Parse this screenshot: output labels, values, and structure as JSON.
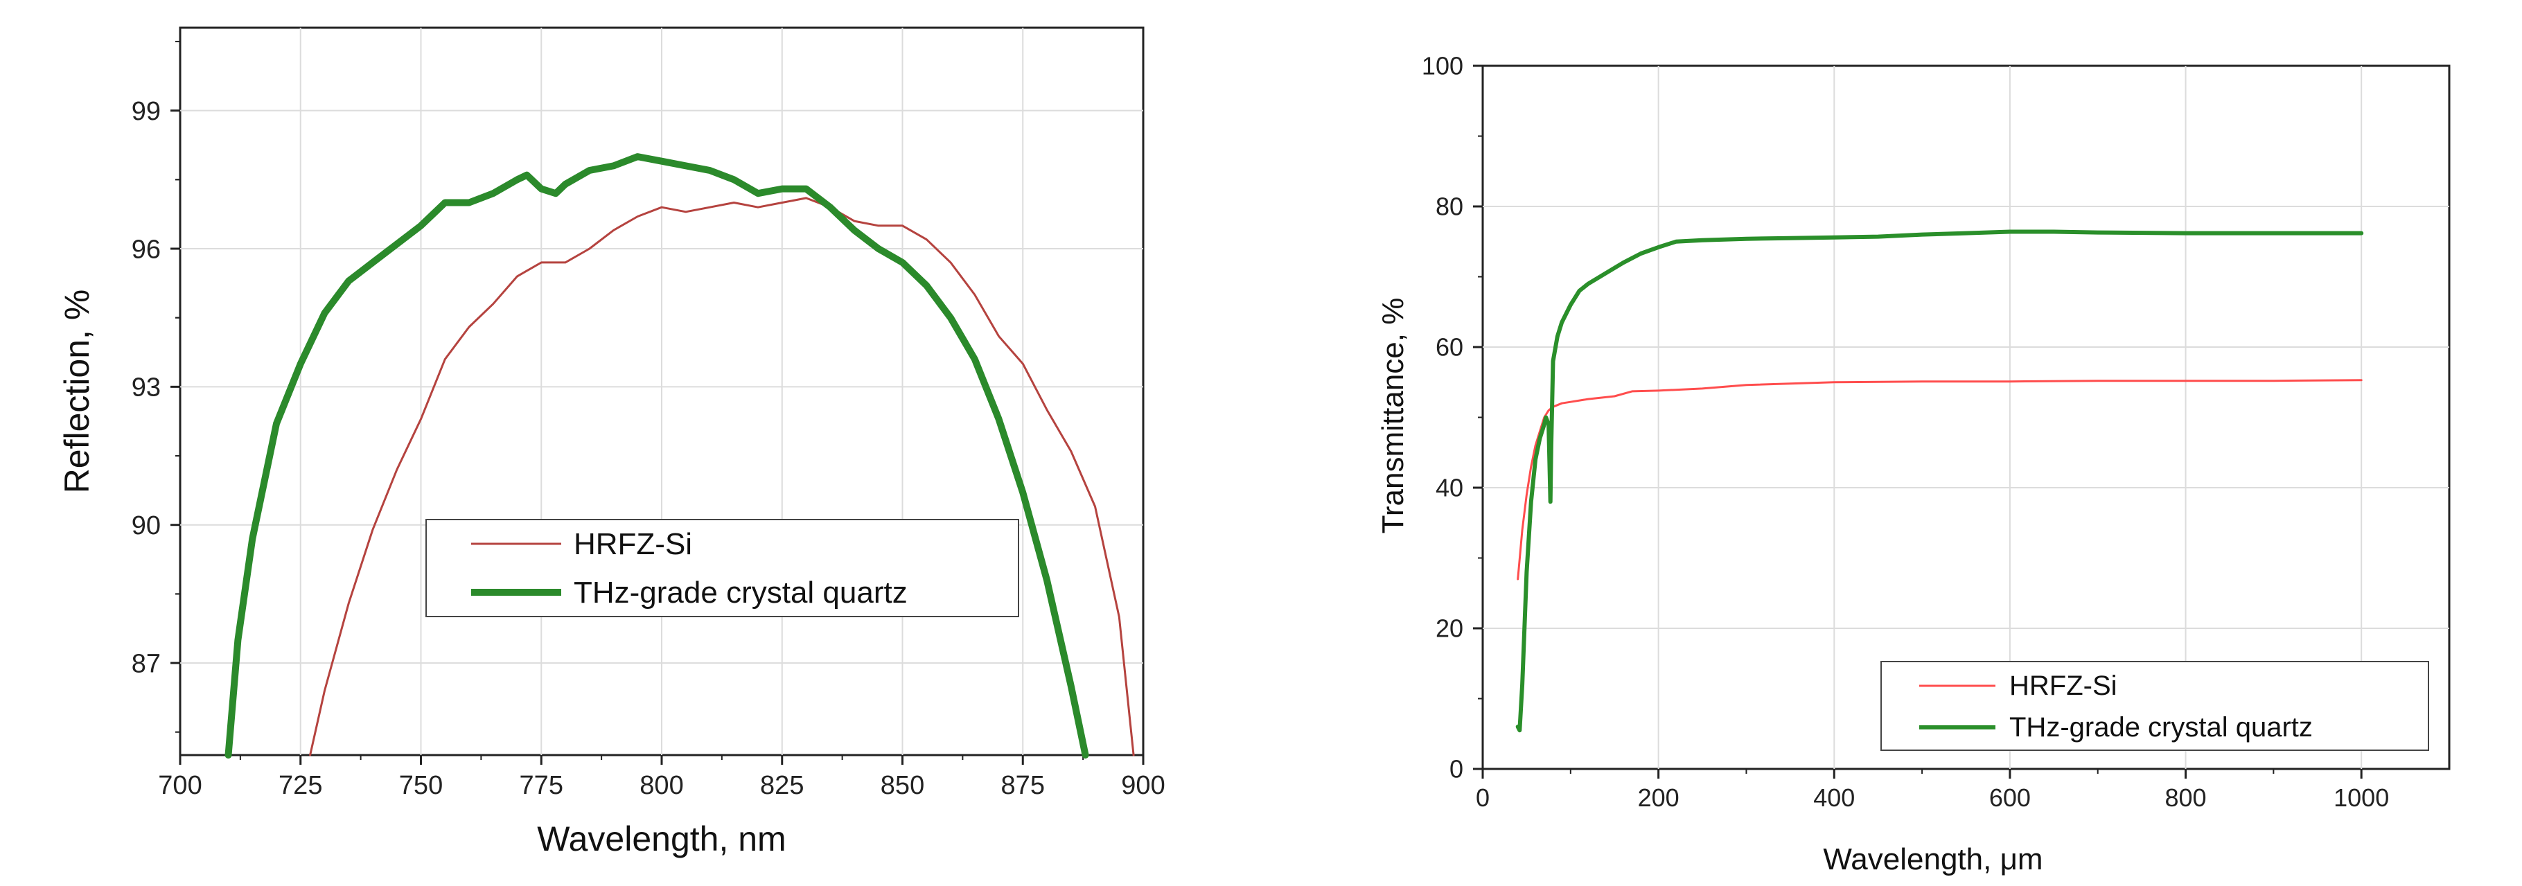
{
  "chart_data": [
    {
      "type": "line",
      "xlabel": "Wavelength, nm",
      "ylabel": "Reflection, %",
      "xlim": [
        700,
        900
      ],
      "ylim": [
        85,
        100.8
      ],
      "xticks": [
        700,
        725,
        750,
        775,
        800,
        825,
        850,
        875,
        900
      ],
      "yticks": [
        87,
        90,
        93,
        96,
        99
      ],
      "grid": true,
      "legend_position": "center-right",
      "series": [
        {
          "name": "HRFZ-Si",
          "color": "#b5433f",
          "x": [
            727,
            730,
            735,
            740,
            745,
            750,
            755,
            760,
            765,
            770,
            775,
            780,
            785,
            790,
            795,
            800,
            805,
            810,
            815,
            820,
            825,
            830,
            835,
            840,
            845,
            850,
            855,
            860,
            865,
            870,
            875,
            880,
            885,
            890,
            895,
            898
          ],
          "y": [
            85.0,
            86.4,
            88.3,
            89.9,
            91.2,
            92.3,
            93.6,
            94.3,
            94.8,
            95.4,
            95.7,
            95.7,
            96.0,
            96.4,
            96.7,
            96.9,
            96.8,
            96.9,
            97.0,
            96.9,
            97.0,
            97.1,
            96.9,
            96.6,
            96.5,
            96.5,
            96.2,
            95.7,
            95.0,
            94.1,
            93.5,
            92.5,
            91.6,
            90.4,
            88.0,
            85.0
          ],
          "line_width": 3
        },
        {
          "name": "THz-grade crystal quartz",
          "color": "#2b8a2b",
          "x": [
            710,
            712,
            715,
            718,
            720,
            725,
            730,
            735,
            740,
            745,
            750,
            755,
            760,
            765,
            770,
            772,
            775,
            778,
            780,
            785,
            790,
            795,
            800,
            805,
            810,
            815,
            820,
            825,
            830,
            835,
            840,
            845,
            850,
            855,
            860,
            865,
            870,
            875,
            880,
            885,
            888
          ],
          "y": [
            85.0,
            87.5,
            89.7,
            91.2,
            92.2,
            93.5,
            94.6,
            95.3,
            95.7,
            96.1,
            96.5,
            97.0,
            97.0,
            97.2,
            97.5,
            97.6,
            97.3,
            97.2,
            97.4,
            97.7,
            97.8,
            98.0,
            97.9,
            97.8,
            97.7,
            97.5,
            97.2,
            97.3,
            97.3,
            96.9,
            96.4,
            96.0,
            95.7,
            95.2,
            94.5,
            93.6,
            92.3,
            90.7,
            88.8,
            86.5,
            85.0
          ],
          "line_width": 10
        }
      ]
    },
    {
      "type": "line",
      "xlabel": "Wavelength, μm",
      "ylabel": "Transmittance, %",
      "xlim": [
        0,
        1100
      ],
      "ylim": [
        0,
        100
      ],
      "xticks": [
        0,
        200,
        400,
        600,
        800,
        1000
      ],
      "yticks": [
        0,
        20,
        40,
        60,
        80,
        100
      ],
      "grid": true,
      "legend_position": "bottom-right",
      "series": [
        {
          "name": "HRFZ-Si",
          "color": "#ff4d4d",
          "x": [
            40,
            45,
            50,
            55,
            60,
            65,
            70,
            75,
            80,
            90,
            100,
            120,
            150,
            170,
            200,
            250,
            300,
            400,
            500,
            600,
            700,
            800,
            900,
            1000
          ],
          "y": [
            27,
            34,
            39,
            43,
            46,
            48,
            50,
            51,
            51.5,
            52,
            52.2,
            52.6,
            53,
            53.7,
            53.8,
            54.1,
            54.6,
            55,
            55.1,
            55.1,
            55.2,
            55.2,
            55.2,
            55.3
          ],
          "line_width": 3
        },
        {
          "name": "THz-grade crystal quartz",
          "color": "#2a8f2a",
          "x": [
            40,
            42,
            45,
            50,
            55,
            60,
            65,
            70,
            72,
            75,
            77,
            78,
            80,
            85,
            90,
            100,
            110,
            120,
            140,
            160,
            180,
            200,
            220,
            250,
            300,
            350,
            400,
            450,
            500,
            550,
            600,
            650,
            700,
            800,
            900,
            1000
          ],
          "y": [
            6,
            5.5,
            12,
            28,
            38,
            44,
            47,
            49,
            50,
            49,
            38,
            46,
            58,
            61.5,
            63.5,
            66,
            68,
            69,
            70.5,
            72,
            73.3,
            74.2,
            75,
            75.2,
            75.4,
            75.5,
            75.6,
            75.7,
            76,
            76.2,
            76.4,
            76.4,
            76.3,
            76.2,
            76.2,
            76.2
          ],
          "line_width": 6
        }
      ]
    }
  ]
}
